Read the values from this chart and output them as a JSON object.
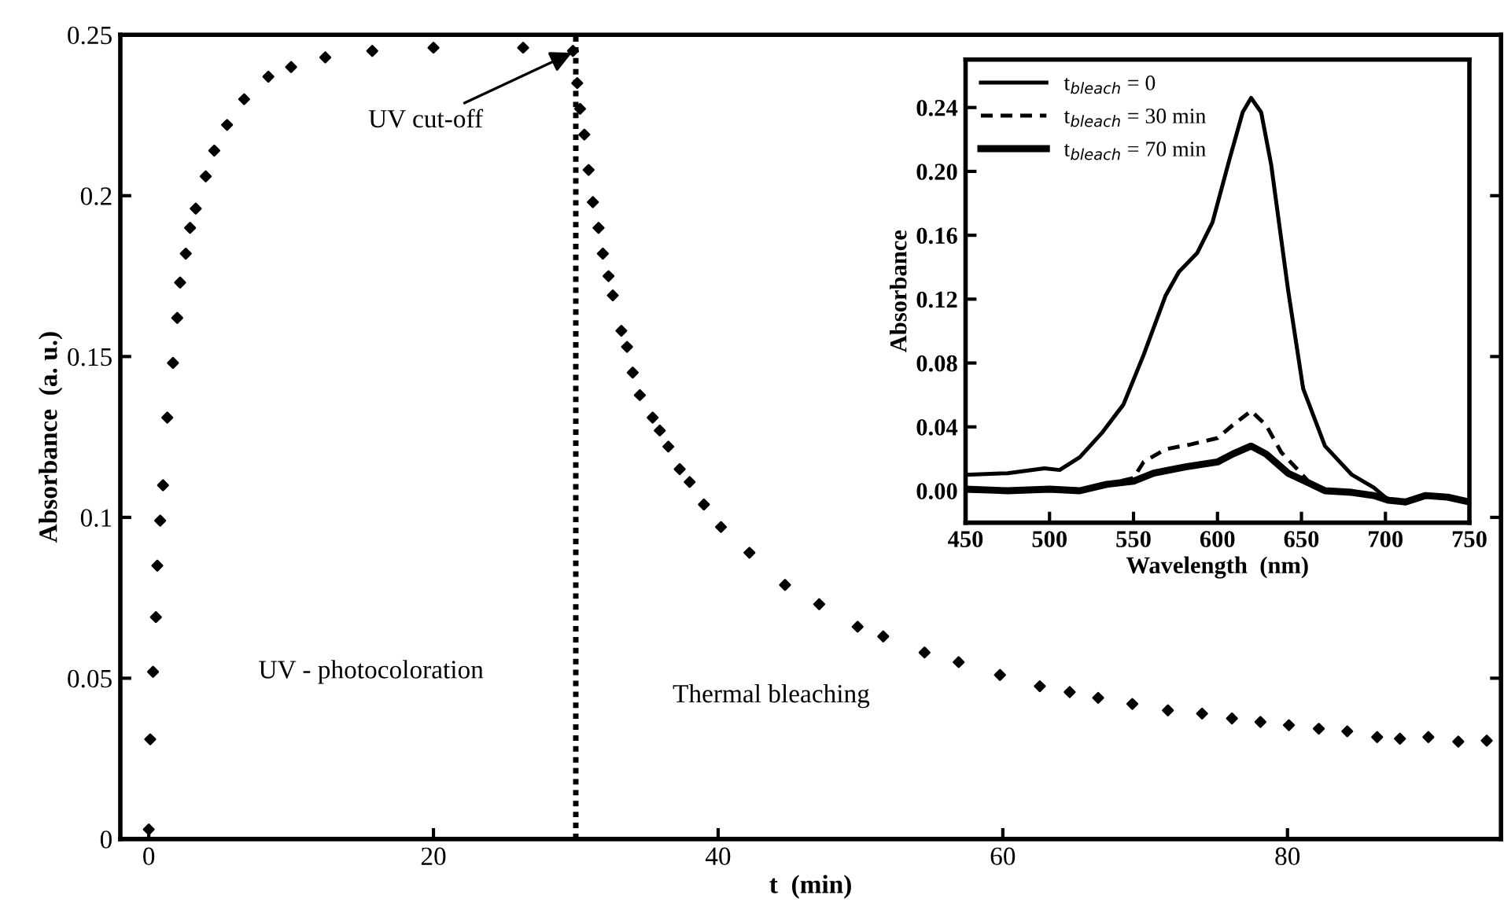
{
  "chart_data": [
    {
      "type": "scatter",
      "xlabel": "t  (min)",
      "ylabel": "Absorbance  (a. u.)",
      "xlim": [
        -2,
        95
      ],
      "ylim": [
        0,
        0.25
      ],
      "xticks": [
        0,
        20,
        40,
        60,
        80
      ],
      "yticks": [
        0,
        0.05,
        0.1,
        0.15,
        0.2,
        0.25
      ],
      "marker": "diamond",
      "grid": false,
      "legend": false,
      "series": [
        {
          "color": "#000000",
          "x": [
            0,
            0.1,
            0.3,
            0.5,
            0.6,
            0.8,
            1.0,
            1.3,
            1.7,
            2.0,
            2.2,
            2.6,
            2.9,
            3.3,
            4.0,
            4.6,
            5.5,
            6.7,
            8.4,
            10,
            12.4,
            15.7,
            20,
            26.3,
            29.8,
            30.1,
            30.3,
            30.6,
            30.9,
            31.2,
            31.6,
            31.9,
            32.3,
            32.6,
            33.2,
            33.6,
            34,
            34.5,
            35.4,
            35.9,
            36.5,
            37.3,
            38,
            39,
            40.2,
            42.2,
            44.7,
            47.1,
            49.8,
            51.6,
            54.5,
            56.9,
            59.8,
            62.6,
            64.7,
            66.7,
            69.1,
            71.6,
            74.0,
            76.1,
            78.1,
            80.1,
            82.2,
            84.2,
            86.3,
            87.9,
            89.9,
            92.0,
            94.0
          ],
          "values": [
            0.003,
            0.031,
            0.052,
            0.069,
            0.085,
            0.099,
            0.11,
            0.131,
            0.148,
            0.162,
            0.173,
            0.182,
            0.19,
            0.196,
            0.206,
            0.214,
            0.222,
            0.23,
            0.237,
            0.24,
            0.243,
            0.245,
            0.246,
            0.246,
            0.245,
            0.235,
            0.227,
            0.219,
            0.208,
            0.198,
            0.19,
            0.182,
            0.175,
            0.169,
            0.158,
            0.153,
            0.145,
            0.138,
            0.131,
            0.127,
            0.122,
            0.115,
            0.111,
            0.104,
            0.097,
            0.089,
            0.079,
            0.073,
            0.066,
            0.063,
            0.058,
            0.055,
            0.051,
            0.0475,
            0.0457,
            0.0439,
            0.042,
            0.04,
            0.039,
            0.0375,
            0.0364,
            0.0354,
            0.0343,
            0.0335,
            0.0317,
            0.0312,
            0.0317,
            0.0303,
            0.0306
          ]
        }
      ],
      "ref_lines": [
        {
          "axis": "x",
          "value": 30,
          "color": "#000000",
          "line_style": "dotted"
        }
      ],
      "annotations": [
        {
          "text": "UV cut-off",
          "x": 30,
          "y": 0.245
        },
        "UV - photocoloration",
        "Thermal bleaching"
      ]
    },
    {
      "type": "line",
      "xlabel": "Wavelength  (nm)",
      "ylabel": "Absorbance",
      "xlim": [
        450,
        750
      ],
      "ylim": [
        -0.02,
        0.27
      ],
      "xticks": [
        450,
        500,
        550,
        600,
        650,
        700,
        750
      ],
      "yticks": [
        {
          "value": 0,
          "label": "0.00"
        },
        {
          "value": 0.04,
          "label": "0.04"
        },
        {
          "value": 0.08,
          "label": "0.08"
        },
        {
          "value": 0.12,
          "label": "0.12"
        },
        {
          "value": 0.16,
          "label": "0.16"
        },
        {
          "value": 0.2,
          "label": "0.20"
        },
        {
          "value": 0.24,
          "label": "0.24"
        }
      ],
      "grid": false,
      "legend": "top left",
      "series": [
        {
          "name": "t$_{bleach}$ = 0",
          "color": "#000000",
          "line_style": "solid",
          "x": [
            450,
            475,
            497,
            506,
            518,
            531,
            544,
            556,
            569,
            577,
            588,
            597,
            607,
            615,
            620,
            626,
            632,
            642,
            651,
            664,
            680,
            693,
            702,
            712,
            724,
            737,
            750
          ],
          "values": [
            0.01,
            0.011,
            0.014,
            0.013,
            0.021,
            0.036,
            0.054,
            0.085,
            0.122,
            0.137,
            0.149,
            0.168,
            0.207,
            0.237,
            0.246,
            0.237,
            0.204,
            0.126,
            0.064,
            0.028,
            0.01,
            0.002,
            -0.006,
            -0.007,
            -0.003,
            -0.004,
            -0.007
          ]
        },
        {
          "name": "t$_{bleach}$ = 30 min",
          "color": "#000000",
          "line_style": "dashed",
          "x": [
            450,
            475,
            500,
            518,
            534,
            550,
            556,
            569,
            584,
            600,
            609,
            620,
            629,
            638,
            648,
            654,
            664
          ],
          "values": [
            0.001,
            0.0,
            0.001,
            0.0,
            0.004,
            0.008,
            0.018,
            0.026,
            0.029,
            0.033,
            0.041,
            0.05,
            0.041,
            0.024,
            0.013,
            0.006,
            0.0
          ]
        },
        {
          "name": "t$_{bleach}$ = 70 min",
          "color": "#000000",
          "line_style": "solid",
          "x": [
            450,
            475,
            500,
            518,
            534,
            550,
            562,
            581,
            600,
            609,
            620,
            629,
            642,
            654,
            664,
            680,
            693,
            702,
            712,
            724,
            737,
            750
          ],
          "values": [
            0.001,
            0.0,
            0.001,
            0.0,
            0.004,
            0.006,
            0.011,
            0.015,
            0.018,
            0.023,
            0.028,
            0.023,
            0.011,
            0.005,
            0.0,
            -0.001,
            -0.003,
            -0.006,
            -0.007,
            -0.003,
            -0.004,
            -0.007
          ]
        }
      ]
    }
  ]
}
